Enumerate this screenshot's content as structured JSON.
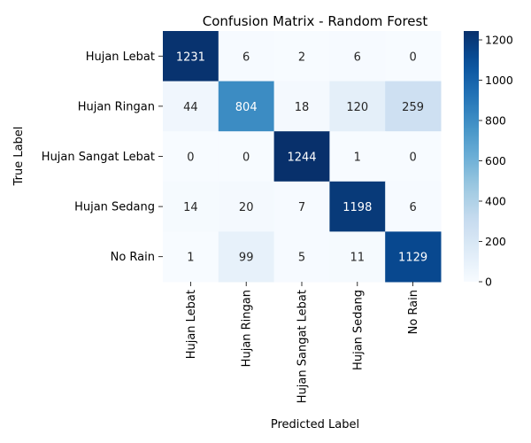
{
  "chart_data": {
    "type": "heatmap",
    "title": "Confusion Matrix - Random Forest",
    "xlabel": "Predicted Label",
    "ylabel": "True Label",
    "x_categories": [
      "Hujan Lebat",
      "Hujan Ringan",
      "Hujan Sangat Lebat",
      "Hujan Sedang",
      "No Rain"
    ],
    "y_categories": [
      "Hujan Lebat",
      "Hujan Ringan",
      "Hujan Sangat Lebat",
      "Hujan Sedang",
      "No Rain"
    ],
    "values": [
      [
        1231,
        6,
        2,
        6,
        0
      ],
      [
        44,
        804,
        18,
        120,
        259
      ],
      [
        0,
        0,
        1244,
        1,
        0
      ],
      [
        14,
        20,
        7,
        1198,
        6
      ],
      [
        1,
        99,
        5,
        11,
        1129
      ]
    ],
    "colorscale": "Blues",
    "color_range": [
      0,
      1244
    ],
    "colorbar_ticks": [
      0,
      200,
      400,
      600,
      800,
      1000,
      1200
    ],
    "grid": false
  }
}
